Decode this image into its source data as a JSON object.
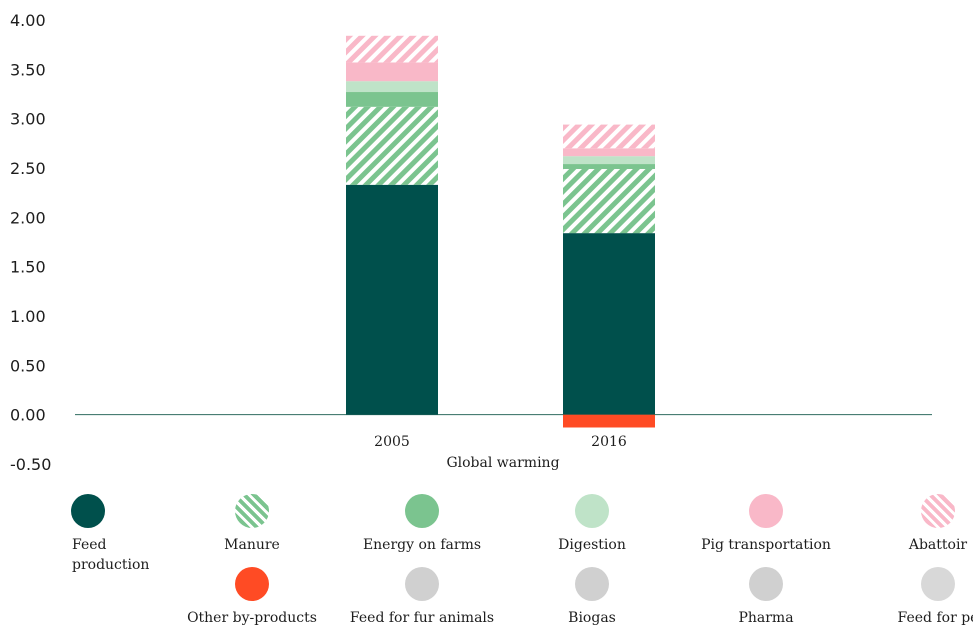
{
  "chart_data": {
    "type": "bar",
    "stacked": true,
    "categories": [
      "2005",
      "2016"
    ],
    "xlabel": "Global warming",
    "ylabel": "",
    "ylim": [
      -0.5,
      4.0
    ],
    "yticks": [
      "4.00",
      "3.50",
      "3.00",
      "2.50",
      "2.00",
      "1.50",
      "1.00",
      "0.50",
      "0.00",
      "-0.50"
    ],
    "grid": false,
    "legend_position": "bottom",
    "series": [
      {
        "name": "Feed production",
        "values": [
          2.33,
          1.84
        ],
        "color": "#00504c",
        "pattern": "solid"
      },
      {
        "name": "Manure",
        "values": [
          0.79,
          0.65
        ],
        "color": "#7bc48f",
        "pattern": "hatched"
      },
      {
        "name": "Energy on farms",
        "values": [
          0.15,
          0.05
        ],
        "color": "#7bc48f",
        "pattern": "solid"
      },
      {
        "name": "Digestion",
        "values": [
          0.11,
          0.08
        ],
        "color": "#bfe3c8",
        "pattern": "solid"
      },
      {
        "name": "Pig transportation",
        "values": [
          0.19,
          0.08
        ],
        "color": "#f9b8c8",
        "pattern": "solid"
      },
      {
        "name": "Abattoir",
        "values": [
          0.27,
          0.24
        ],
        "color": "#f9b8c8",
        "pattern": "hatched"
      },
      {
        "name": "Other by-products",
        "values": [
          0,
          -0.13
        ],
        "color": "#ff4b24",
        "pattern": "solid"
      },
      {
        "name": "Feed for fur animals",
        "values": [
          0,
          0
        ],
        "color": "#d0d0d0",
        "pattern": "solid"
      },
      {
        "name": "Biogas",
        "values": [
          0,
          0
        ],
        "color": "#d0d0d0",
        "pattern": "solid"
      },
      {
        "name": "Pharma",
        "values": [
          0,
          0
        ],
        "color": "#d0d0d0",
        "pattern": "solid"
      },
      {
        "name": "Feed for pe",
        "values": [
          0,
          0
        ],
        "color": "#d8d8d8",
        "pattern": "solid"
      }
    ]
  },
  "legend": {
    "items": [
      {
        "label": "Feed\nproduction",
        "icon": "solid-dot-icon",
        "color": "#00504c",
        "pattern": "solid"
      },
      {
        "label": "Manure",
        "icon": "hatched-dot-icon",
        "color": "#7bc48f",
        "pattern": "hatched"
      },
      {
        "label": "Energy on farms",
        "icon": "solid-dot-icon",
        "color": "#7bc48f",
        "pattern": "solid"
      },
      {
        "label": "Digestion",
        "icon": "solid-dot-icon",
        "color": "#bfe3c8",
        "pattern": "solid"
      },
      {
        "label": "Pig transportation",
        "icon": "solid-dot-icon",
        "color": "#f9b8c8",
        "pattern": "solid"
      },
      {
        "label": "Abattoir",
        "icon": "hatched-dot-icon",
        "color": "#f9b8c8",
        "pattern": "hatched"
      },
      {
        "label": "Other by-products",
        "icon": "solid-dot-icon",
        "color": "#ff4b24",
        "pattern": "solid"
      },
      {
        "label": "Feed for fur animals",
        "icon": "solid-dot-icon",
        "color": "#d0d0d0",
        "pattern": "solid"
      },
      {
        "label": "Biogas",
        "icon": "solid-dot-icon",
        "color": "#d0d0d0",
        "pattern": "solid"
      },
      {
        "label": "Pharma",
        "icon": "solid-dot-icon",
        "color": "#d0d0d0",
        "pattern": "solid"
      },
      {
        "label": "Feed for pe",
        "icon": "solid-dot-icon",
        "color": "#d8d8d8",
        "pattern": "solid"
      }
    ]
  }
}
